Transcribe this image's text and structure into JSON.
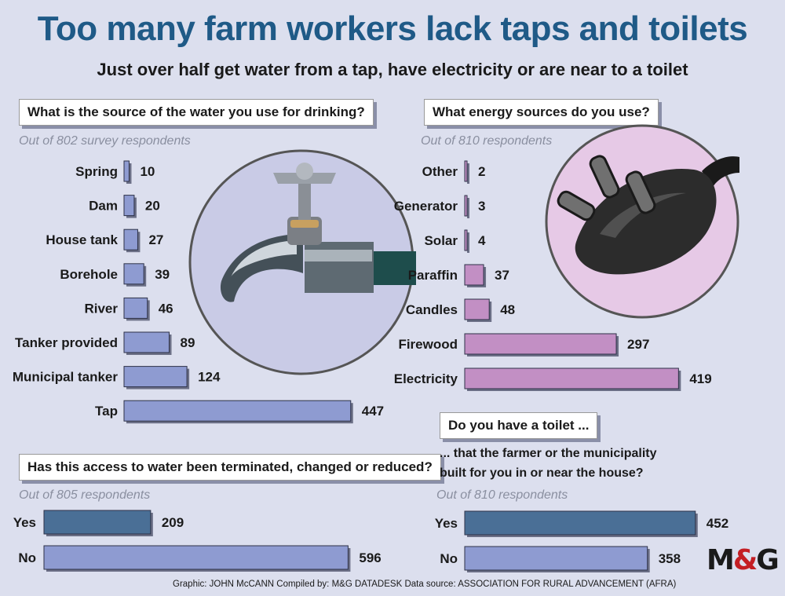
{
  "title": "Too many farm workers lack taps and toilets",
  "subtitle": "Just over half get water from a tap, have electricity or are near to a toilet",
  "colors": {
    "title": "#1f5a87",
    "water_bar": "#8e9bd1",
    "energy_bar": "#c28fc4",
    "yes_bar": "#4a6f96",
    "no_bar": "#8e9bd1",
    "logo_amp": "#c41e24"
  },
  "icons": [
    "tap-icon",
    "electric-plug-icon"
  ],
  "logo": {
    "left": "M",
    "amp": "&",
    "right": "G"
  },
  "credit": "Graphic: JOHN McCANN  Compiled by: M&G DATADESK  Data source: ASSOCIATION FOR RURAL ADVANCEMENT (AFRA)",
  "chart_data": [
    {
      "id": "water",
      "type": "bar",
      "orientation": "horizontal",
      "question": "What is the source of the water you use for drinking?",
      "note": "Out of 802 survey respondents",
      "categories": [
        "Spring",
        "Dam",
        "House tank",
        "Borehole",
        "River",
        "Tanker provided",
        "Municipal tanker",
        "Tap"
      ],
      "values": [
        10,
        20,
        27,
        39,
        46,
        89,
        124,
        447
      ]
    },
    {
      "id": "energy",
      "type": "bar",
      "orientation": "horizontal",
      "question": "What energy sources do you use?",
      "note": "Out of 810 respondents",
      "categories": [
        "Other",
        "Generator",
        "Solar",
        "Paraffin",
        "Candles",
        "Firewood",
        "Electricity"
      ],
      "values": [
        2,
        3,
        4,
        37,
        48,
        297,
        419
      ]
    },
    {
      "id": "terminated",
      "type": "bar",
      "orientation": "horizontal",
      "question": "Has this access to water been terminated, changed or reduced?",
      "note": "Out of 805 respondents",
      "categories": [
        "Yes",
        "No"
      ],
      "values": [
        209,
        596
      ]
    },
    {
      "id": "toilet",
      "type": "bar",
      "orientation": "horizontal",
      "question": "Do you have a toilet ...",
      "question_cont_1": "... that the farmer or the municipality",
      "question_cont_2": "built for you in or near the house?",
      "note": "Out of 810 respondents",
      "categories": [
        "Yes",
        "No"
      ],
      "values": [
        452,
        358
      ]
    }
  ]
}
